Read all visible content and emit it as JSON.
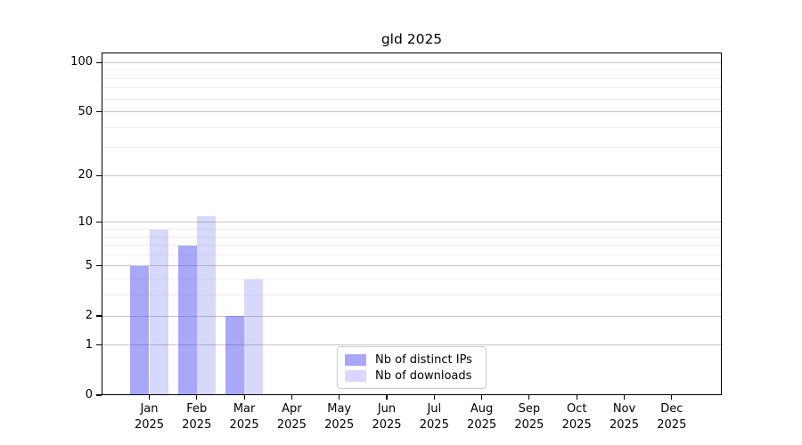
{
  "chart_data": {
    "type": "bar",
    "title": "gld 2025",
    "categories": [
      "Jan",
      "Feb",
      "Mar",
      "Apr",
      "May",
      "Jun",
      "Jul",
      "Aug",
      "Sep",
      "Oct",
      "Nov",
      "Dec"
    ],
    "year": "2025",
    "series": [
      {
        "name": "Nb of distinct IPs",
        "color": "#4646f078",
        "values": [
          5,
          7,
          2,
          0,
          0,
          0,
          0,
          0,
          0,
          0,
          0,
          0
        ]
      },
      {
        "name": "Nb of downloads",
        "color": "#4646f036",
        "values": [
          9,
          11,
          4,
          0,
          0,
          0,
          0,
          0,
          0,
          0,
          0,
          0
        ]
      }
    ],
    "xlabel": "",
    "ylabel": "",
    "scale": "log1p",
    "ylim": [
      0,
      115
    ],
    "yticks": [
      0,
      1,
      2,
      5,
      10,
      20,
      50,
      100
    ],
    "minor_gridlines": [
      3,
      4,
      6,
      7,
      8,
      9,
      30,
      40,
      60,
      70,
      80,
      90
    ],
    "grid": true,
    "legend_position": "lower center",
    "colors": {
      "major_grid": "#c6c6c6",
      "minor_grid": "#ededed",
      "axis": "#000000",
      "background": "#ffffff"
    }
  }
}
